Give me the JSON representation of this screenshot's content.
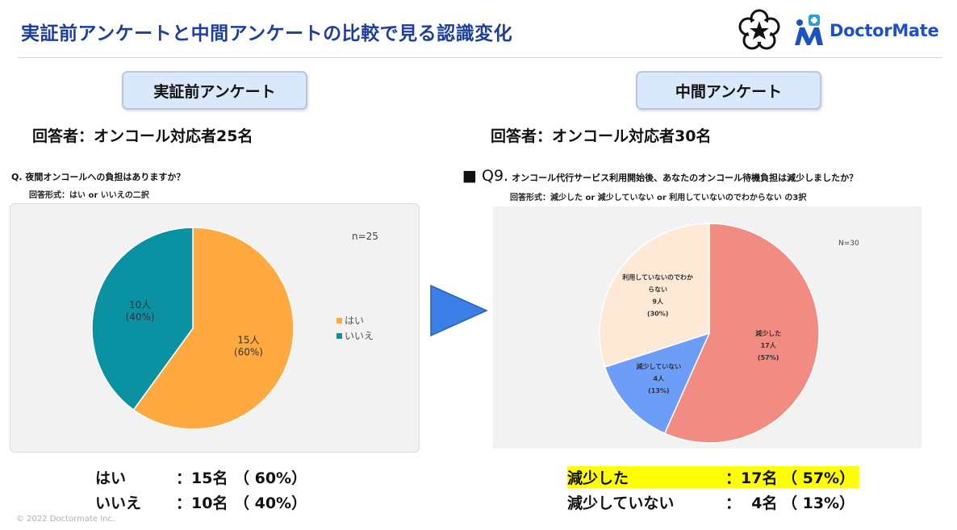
{
  "header": {
    "title": "実証前アンケートと中間アンケートの比較で見る認識変化",
    "brand": "DoctorMate"
  },
  "left": {
    "pill_label": "実証前アンケート",
    "respondents": "回答者：オンコール対応者25名",
    "question": "Q.  夜間オンコールへの負担はありますか？",
    "answer_format": "回答形式：はい or いいえの二択",
    "summary": [
      {
        "label": "はい",
        "count": "：15名",
        "pct": "（ 60%）"
      },
      {
        "label": "いいえ",
        "count": "：10名",
        "pct": "（ 40%）"
      }
    ]
  },
  "right": {
    "pill_label": "中間アンケート",
    "respondents": "回答者：オンコール対応者30名",
    "question_prefix": "■ Q9.",
    "question": "オンコール代行サービス利用開始後、あなたのオンコール待機負担は減少しましたか？",
    "answer_format": "回答形式：減少した or 減少していない or 利用していないのでわからない の3択",
    "summary": [
      {
        "label": "減少した",
        "count": "：17名",
        "pct": "（ 57%）",
        "highlight": true
      },
      {
        "label": "減少していない",
        "count": "：  4名",
        "pct": "（ 13%）",
        "highlight": false
      }
    ]
  },
  "footer": {
    "copyright": "© 2022 Doctormate Inc."
  },
  "colors": {
    "title": "#1f3f9a",
    "orange": "#ffa940",
    "teal": "#0a92a3",
    "salmon": "#f28b82",
    "blue": "#6d9ef7",
    "peach": "#fde9d5",
    "arrow": "#3b7ee6",
    "highlight": "#ffff00"
  },
  "chart_data": [
    {
      "type": "pie",
      "n_label": "n=25",
      "categories": [
        "はい",
        "いいえ"
      ],
      "values": [
        15,
        10
      ],
      "slice_labels": [
        [
          "15人",
          "(60%)"
        ],
        [
          "10人",
          "(40%)"
        ]
      ],
      "legend": [
        "はい",
        "いいえ"
      ],
      "legend_position": "right"
    },
    {
      "type": "pie",
      "n_label": "N=30",
      "categories": [
        "減少した",
        "減少していない",
        "利用していないのでわからない"
      ],
      "values": [
        17,
        4,
        9
      ],
      "slice_labels": [
        [
          "減少した",
          "17人",
          "(57%)"
        ],
        [
          "減少していない",
          "4人",
          "(13%)"
        ],
        [
          "利用していないのでわか",
          "らない",
          "9人",
          "(30%)"
        ]
      ]
    }
  ]
}
